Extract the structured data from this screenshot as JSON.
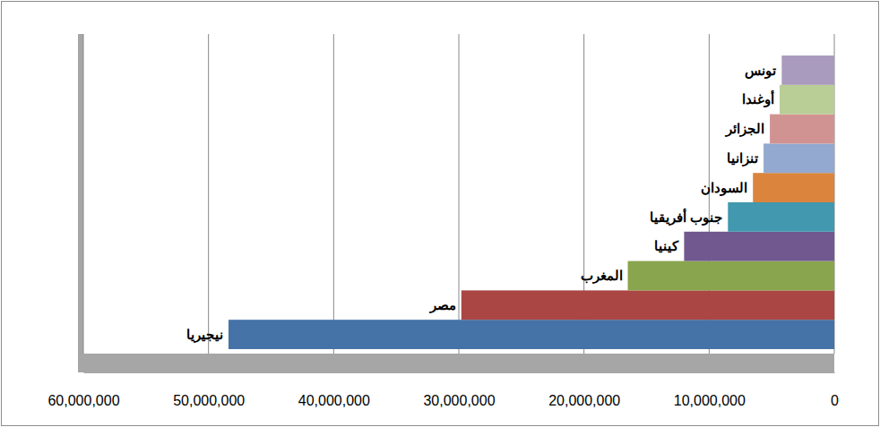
{
  "chart_data": {
    "type": "bar",
    "orientation": "horizontal",
    "grid": true,
    "categories": [
      "نيجيريا",
      "مصر",
      "المغرب",
      "كينيا",
      "جنوب أفريقيا",
      "السودان",
      "تنزانيا",
      "الجزائر",
      "أوغندا",
      "تونس"
    ],
    "values": [
      48400000,
      29800000,
      16500000,
      12000000,
      8500000,
      6500000,
      5650000,
      5150000,
      4370000,
      4200000
    ],
    "colors": [
      "#4572a7",
      "#aa4643",
      "#89a54e",
      "#71588f",
      "#4198af",
      "#db843d",
      "#93a9cf",
      "#d19392",
      "#b9cd96",
      "#a99bbd"
    ],
    "xlim": [
      0,
      60000000
    ],
    "xticks": [
      0,
      {
        "value": 10000000,
        "label": "10,000,000"
      },
      {
        "value": 20000000,
        "label": "20,000,000"
      },
      {
        "value": 30000000,
        "label": "30,000,000"
      },
      {
        "value": 40000000,
        "label": "40,000,000"
      },
      {
        "value": 50000000,
        "label": "50,000,000"
      },
      {
        "value": 60000000,
        "label": "60,000,000"
      }
    ]
  }
}
